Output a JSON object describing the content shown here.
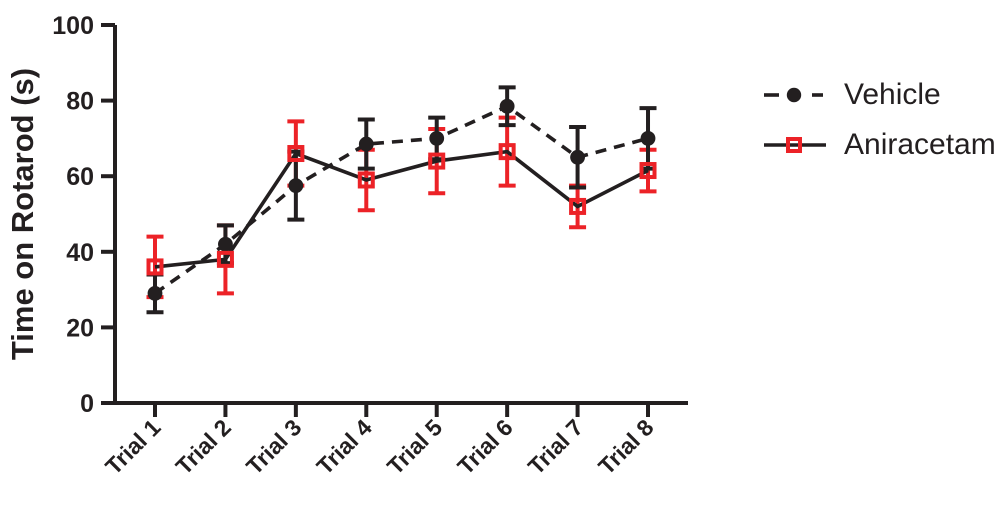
{
  "figure": {
    "background": "#FFFFFF",
    "text_color": "#231F20"
  },
  "chart_data": {
    "type": "line",
    "title": "",
    "xlabel": "",
    "ylabel": "Time on Rotarod (s)",
    "categories": [
      "Trial 1",
      "Trial 2",
      "Trial 3",
      "Trial 4",
      "Trial 5",
      "Trial 6",
      "Trial 7",
      "Trial 8"
    ],
    "ylim": [
      0,
      100
    ],
    "yticks": [
      0,
      20,
      40,
      60,
      80,
      100
    ],
    "grid": false,
    "error_bars": "symmetric, capped",
    "legend_position": "right",
    "series": [
      {
        "name": "Vehicle",
        "line_style": "dashed",
        "marker": "filled-circle",
        "marker_color": "#231F20",
        "line_color": "#231F20",
        "error_color": "#231F20",
        "values": [
          29,
          42,
          57.5,
          68.5,
          70,
          78.5,
          65,
          70
        ],
        "errors": [
          5,
          5,
          9,
          6.5,
          5.5,
          5,
          8,
          8
        ]
      },
      {
        "name": "Aniracetam",
        "line_style": "solid",
        "marker": "open-square",
        "marker_color": "#EC2227",
        "line_color": "#231F20",
        "error_color": "#EC2227",
        "values": [
          36,
          38,
          66,
          59,
          64,
          66.5,
          52,
          61.5
        ],
        "errors": [
          8,
          9,
          8.5,
          8,
          8.5,
          9,
          5.5,
          5.5
        ]
      }
    ]
  },
  "legend": {
    "items": [
      {
        "label": "Vehicle"
      },
      {
        "label": "Aniracetam"
      }
    ]
  }
}
